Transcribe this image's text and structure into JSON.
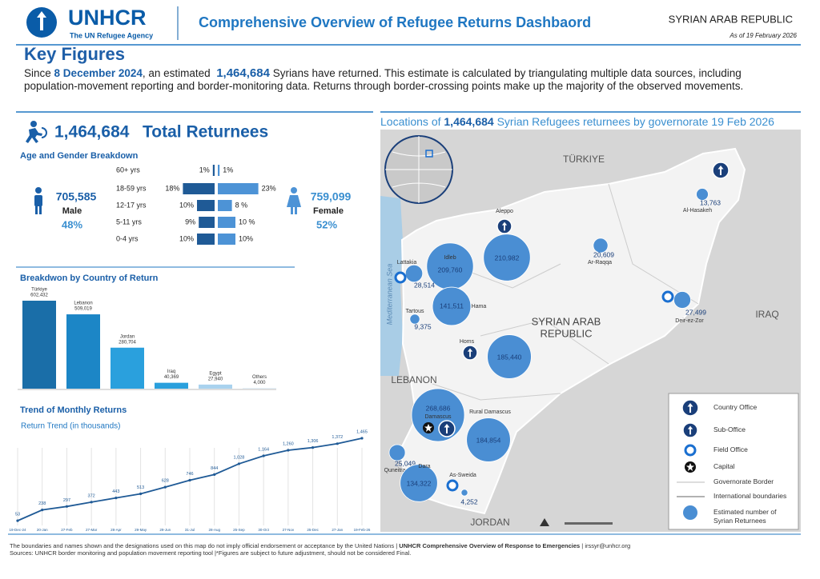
{
  "header": {
    "logo": "UNHCR",
    "tagline": "The UN Refugee Agency",
    "title": "Comprehensive Overview of Refugee Returns Dashbaord",
    "country": "SYRIAN ARAB REPUBLIC",
    "date": "As of 19 February 2026"
  },
  "key_figures": {
    "title": "Key Figures",
    "intro_1": "Since",
    "date": "8 December 2024",
    "intro_2": ", an estimated",
    "total": "1,464,684",
    "intro_3": "Syrians have returned. This estimate is calculated by triangulating multiple data sources, including population-movement reporting and border-monitoring data. Returns through border-crossing points make up the majority of the observed movements."
  },
  "total_returnees": {
    "value": "1,464,684",
    "label": "Total Returnees"
  },
  "age_gender": {
    "title": "Age and Gender Breakdown",
    "male": {
      "value": "705,585",
      "label": "Male",
      "share": "48%"
    },
    "female": {
      "value": "759,099",
      "label": "Female",
      "share": "52%"
    },
    "chart": {
      "type": "bar",
      "orientation": "horizontal",
      "categories": [
        "60+ yrs",
        "18-59 yrs",
        "12-17 yrs",
        "5-11 yrs",
        "0-4 yrs"
      ],
      "series": [
        {
          "color": "#1f5a96",
          "values": [
            1,
            18,
            10,
            9,
            10
          ],
          "value_labels": [
            "1%",
            "18%",
            "10%",
            "9%",
            "10%"
          ]
        },
        {
          "color": "#4d93d6",
          "values": [
            1,
            23,
            8,
            10,
            10
          ],
          "value_labels": [
            "1%",
            "23%",
            "8 %",
            "10 %",
            "10%"
          ]
        }
      ]
    }
  },
  "country_breakdown": {
    "title": "Breakdwon by Country of Return",
    "chart": {
      "type": "bar",
      "categories": [
        "Türkiye",
        "Lebanon",
        "Jordan",
        "Iraq",
        "Egypt",
        "Others"
      ],
      "values": [
        602432,
        509019,
        280704,
        40369,
        27940,
        4000
      ],
      "value_labels": [
        "602,432",
        "509,019",
        "280,704",
        "40,369",
        "27,940",
        "4,000"
      ],
      "colors": [
        "#1a6ea8",
        "#1c86c6",
        "#2aa0dd",
        "#2aa0dd",
        "#a9d2ee",
        "#d7e9f6"
      ]
    }
  },
  "trend": {
    "title": "Trend of Monthly Returns",
    "subtitle": "Return Trend (in thousands)",
    "chart": {
      "type": "line",
      "categories": [
        "19-Dec-24",
        "20-Jan",
        "27-Feb",
        "27-Mar",
        "28-Apr",
        "29-May",
        "29-Jun",
        "31-Jul",
        "28-Aug",
        "25-Sep",
        "30-Oct",
        "27-Nov",
        "25-Dec",
        "27-Jan",
        "19-Feb-26"
      ],
      "values": [
        53,
        238,
        297,
        372,
        443,
        513,
        628,
        746,
        844,
        1028,
        1164,
        1260,
        1306,
        1372,
        1465
      ],
      "value_labels": [
        "53",
        "238",
        "297",
        "372",
        "443",
        "513",
        "628",
        "746",
        "844",
        "1,028",
        "1,164",
        "1,260",
        "1,306",
        "1,372",
        "1,465"
      ],
      "color": "#1f5a96",
      "grid": true
    }
  },
  "map": {
    "title_1": "Locations of",
    "title_total": "1,464,684",
    "title_2": "Syrian Refugees returnees by governorate 19 Feb 2026",
    "countries": [
      "TÜRKIYE",
      "IRAQ",
      "LEBANON",
      "JORDAN"
    ],
    "country_name": [
      "SYRIAN ARAB",
      "REPUBLIC"
    ],
    "sea": "Mediterranean Sea",
    "chart": {
      "type": "bubble",
      "categories": [
        "Aleppo",
        "Idleb",
        "Lattakia",
        "Tartous",
        "Hama",
        "Homs",
        "Damascus",
        "Rural Damascus",
        "Quneitra",
        "Dara",
        "As-Sweida",
        "Al-Hasakeh",
        "Ar-Raqqa",
        "Deir-ez-Zor"
      ],
      "values": [
        210982,
        209760,
        28514,
        9375,
        141511,
        185440,
        268686,
        184854,
        25049,
        134322,
        4252,
        13763,
        20609,
        27499
      ],
      "value_labels": [
        "210,982",
        "209,760",
        "28,514",
        "9,375",
        "141,511",
        "185,440",
        "268,686",
        "184,854",
        "25,049",
        "134,322",
        "4,252",
        "13,763",
        "20,609",
        "27,499"
      ],
      "color": "#4a8ed3"
    },
    "legend": [
      "Country Office",
      "Sub-Office",
      "Field Office",
      "Capital",
      "Governorate Border",
      "International boundaries",
      "Estimated number of Syrian Returnees"
    ]
  },
  "footer": {
    "line_1": "The boundaries and names shown and the designations used on this map do not imply official endorsement or acceptance by the United Nations |",
    "line_1_bold": "UNHCR Comprehensive Overview of Response to Emergencies",
    "line_1_end": "| irssyr@unhcr.org",
    "line_2": "Sources: UNHCR border monitoring and population movement reporting tool |*Figures are subject to future adjustment, should not be considered Final."
  }
}
